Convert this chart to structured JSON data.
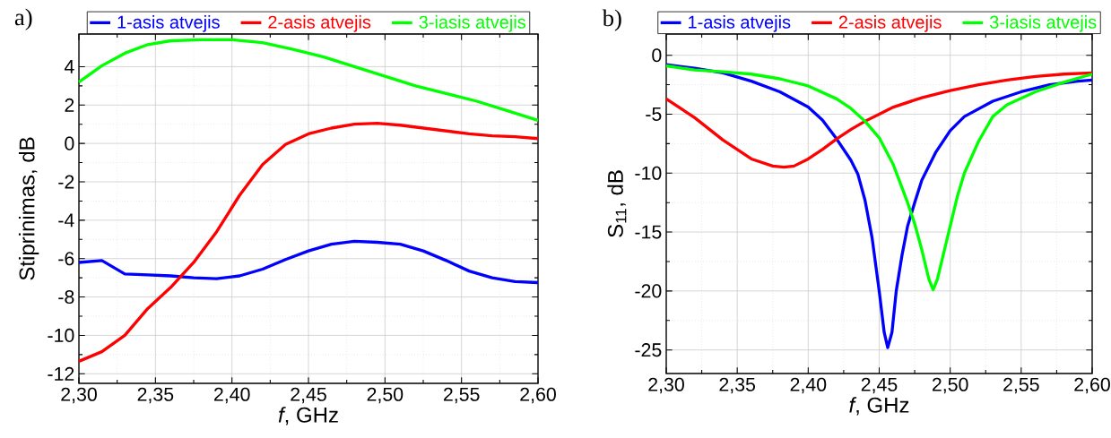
{
  "chart_data": [
    {
      "type": "line",
      "xlabel": "*f*, GHz",
      "ylabel": "Stiprinimas, dB",
      "annotations": [
        "a)"
      ],
      "xlim": [
        2.3,
        2.6
      ],
      "ylim": [
        -12.5,
        5.7
      ],
      "xticks": [
        {
          "value": 2.3,
          "label": "2,30"
        },
        {
          "value": 2.35,
          "label": "2,35"
        },
        {
          "value": 2.4,
          "label": "2,40"
        },
        {
          "value": 2.45,
          "label": "2,45"
        },
        {
          "value": 2.5,
          "label": "2,50"
        },
        {
          "value": 2.55,
          "label": "2,55"
        },
        {
          "value": 2.6,
          "label": "2,60"
        }
      ],
      "yticks": [
        -12,
        -10,
        -8,
        -6,
        -4,
        -2,
        0,
        2,
        4
      ],
      "grid": true,
      "legend": "top",
      "marker": "none",
      "line_style": "solid",
      "series": [
        {
          "name": "1-asis atvejis",
          "color": "#0000ff",
          "x": [
            2.3,
            2.315,
            2.33,
            2.345,
            2.36,
            2.375,
            2.39,
            2.405,
            2.42,
            2.435,
            2.45,
            2.465,
            2.48,
            2.495,
            2.51,
            2.525,
            2.54,
            2.555,
            2.57,
            2.585,
            2.6
          ],
          "values": [
            -6.2,
            -6.1,
            -6.8,
            -6.85,
            -6.9,
            -7.0,
            -7.05,
            -6.9,
            -6.55,
            -6.05,
            -5.6,
            -5.25,
            -5.1,
            -5.15,
            -5.25,
            -5.6,
            -6.1,
            -6.65,
            -7.0,
            -7.2,
            -7.25
          ]
        },
        {
          "name": "2-asis atvejis",
          "color": "#ff0000",
          "x": [
            2.3,
            2.315,
            2.33,
            2.345,
            2.36,
            2.375,
            2.39,
            2.405,
            2.42,
            2.435,
            2.45,
            2.465,
            2.48,
            2.495,
            2.51,
            2.525,
            2.54,
            2.555,
            2.57,
            2.585,
            2.6
          ],
          "values": [
            -11.35,
            -10.85,
            -10.0,
            -8.6,
            -7.5,
            -6.2,
            -4.6,
            -2.7,
            -1.1,
            -0.05,
            0.5,
            0.8,
            1.0,
            1.05,
            0.95,
            0.8,
            0.65,
            0.5,
            0.4,
            0.35,
            0.25
          ]
        },
        {
          "name": "3-iasis atvejis",
          "color": "#00ff00",
          "x": [
            2.3,
            2.315,
            2.33,
            2.345,
            2.36,
            2.38,
            2.4,
            2.42,
            2.44,
            2.46,
            2.48,
            2.5,
            2.52,
            2.54,
            2.56,
            2.58,
            2.6
          ],
          "values": [
            3.2,
            4.05,
            4.7,
            5.15,
            5.35,
            5.4,
            5.4,
            5.25,
            4.9,
            4.5,
            4.0,
            3.5,
            3.0,
            2.6,
            2.2,
            1.7,
            1.2
          ]
        }
      ]
    },
    {
      "type": "line",
      "xlabel": "*f*, GHz",
      "ylabel": "S$_{11}$, dB",
      "annotations": [
        "b)"
      ],
      "xlim": [
        2.3,
        2.6
      ],
      "ylim": [
        -27,
        1.8
      ],
      "xticks": [
        {
          "value": 2.3,
          "label": "2,30"
        },
        {
          "value": 2.35,
          "label": "2,35"
        },
        {
          "value": 2.4,
          "label": "2,40"
        },
        {
          "value": 2.45,
          "label": "2,45"
        },
        {
          "value": 2.5,
          "label": "2,50"
        },
        {
          "value": 2.55,
          "label": "2,55"
        },
        {
          "value": 2.6,
          "label": "2,60"
        }
      ],
      "yticks": [
        -25,
        -20,
        -15,
        -10,
        -5,
        0
      ],
      "grid": true,
      "legend": "top",
      "marker": "none",
      "line_style": "solid",
      "series": [
        {
          "name": "1-asis atvejis",
          "color": "#0000ff",
          "x": [
            2.3,
            2.32,
            2.34,
            2.36,
            2.38,
            2.4,
            2.41,
            2.42,
            2.43,
            2.435,
            2.44,
            2.445,
            2.45,
            2.4535,
            2.456,
            2.459,
            2.462,
            2.466,
            2.47,
            2.475,
            2.48,
            2.49,
            2.5,
            2.51,
            2.53,
            2.55,
            2.57,
            2.59,
            2.6
          ],
          "values": [
            -0.8,
            -1.1,
            -1.5,
            -2.2,
            -3.1,
            -4.4,
            -5.5,
            -7.1,
            -8.9,
            -10.1,
            -12.3,
            -15.5,
            -20,
            -23.5,
            -24.8,
            -23.5,
            -20,
            -17,
            -14.5,
            -12.5,
            -10.6,
            -8.2,
            -6.4,
            -5.2,
            -3.9,
            -3.1,
            -2.5,
            -2.2,
            -2.1
          ]
        },
        {
          "name": "2-asis atvejis",
          "color": "#ff0000",
          "x": [
            2.3,
            2.32,
            2.34,
            2.36,
            2.375,
            2.383,
            2.39,
            2.4,
            2.41,
            2.42,
            2.43,
            2.44,
            2.45,
            2.46,
            2.48,
            2.5,
            2.52,
            2.54,
            2.56,
            2.58,
            2.6
          ],
          "values": [
            -3.7,
            -5.3,
            -7.2,
            -8.8,
            -9.4,
            -9.5,
            -9.4,
            -8.8,
            -8.0,
            -7.1,
            -6.3,
            -5.6,
            -5.0,
            -4.4,
            -3.6,
            -3.0,
            -2.5,
            -2.1,
            -1.8,
            -1.6,
            -1.5
          ]
        },
        {
          "name": "3-iasis atvejis",
          "color": "#00ff00",
          "x": [
            2.3,
            2.32,
            2.34,
            2.36,
            2.38,
            2.4,
            2.42,
            2.43,
            2.44,
            2.45,
            2.46,
            2.47,
            2.475,
            2.48,
            2.485,
            2.488,
            2.491,
            2.495,
            2.5,
            2.505,
            2.51,
            2.52,
            2.53,
            2.54,
            2.56,
            2.58,
            2.6
          ],
          "values": [
            -0.9,
            -1.25,
            -1.4,
            -1.6,
            -2.0,
            -2.6,
            -3.7,
            -4.5,
            -5.6,
            -7.0,
            -9.3,
            -12.5,
            -14.3,
            -16.5,
            -19,
            -19.9,
            -19,
            -17,
            -14.5,
            -12,
            -10,
            -7.3,
            -5.2,
            -4.2,
            -3.1,
            -2.3,
            -1.6
          ]
        }
      ]
    }
  ]
}
